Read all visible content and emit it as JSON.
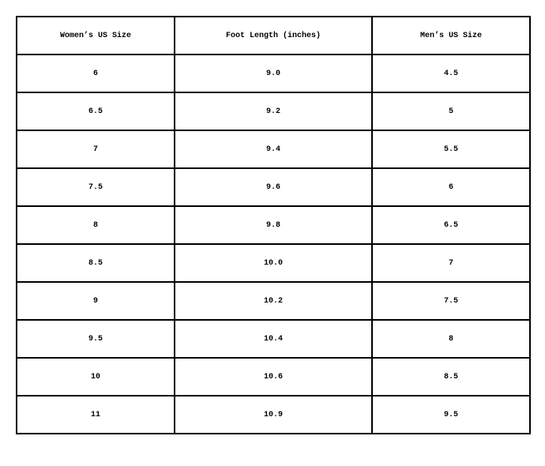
{
  "table": {
    "header": [
      "Women’s US Size",
      "Foot Length (inches)",
      "Men’s US Size"
    ],
    "rows": [
      [
        "6",
        "9.0",
        "4.5"
      ],
      [
        "6.5",
        "9.2",
        "5"
      ],
      [
        "7",
        "9.4",
        "5.5"
      ],
      [
        "7.5",
        "9.6",
        "6"
      ],
      [
        "8",
        "9.8",
        "6.5"
      ],
      [
        "8.5",
        "10.0",
        "7"
      ],
      [
        "9",
        "10.2",
        "7.5"
      ],
      [
        "9.5",
        "10.4",
        "8"
      ],
      [
        "10",
        "10.6",
        "8.5"
      ],
      [
        "11",
        "10.9",
        "9.5"
      ]
    ]
  }
}
